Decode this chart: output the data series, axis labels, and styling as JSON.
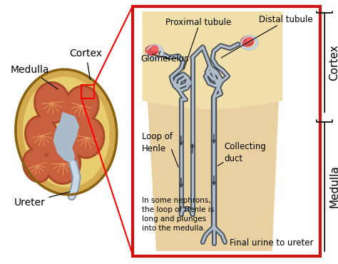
{
  "bg_color": "#ffffff",
  "red_box_color": "#cc1111",
  "tubule_fill": "#b0bcc8",
  "tubule_outline": "#404858",
  "glom_color": "#b03030",
  "glom_cap_color": "#c84040",
  "labels": {
    "cortex": "Cortex",
    "medulla": "Medulla",
    "ureter": "Ureter",
    "proximal": "Proximal tubule",
    "distal": "Distal tubule",
    "glom": "Glomerelus",
    "loop": "Loop of\nHenle",
    "collecting": "Collecting\nduct",
    "note": "In some nephrons,\nthe loop of Henle is\nlong and plunges\ninto the medulla.",
    "final": "Final urine to ureter",
    "cortex_right": "Cortex",
    "medulla_right": "Medulla"
  },
  "fs_large": 10,
  "fs_med": 8.5,
  "fs_small": 7.5
}
